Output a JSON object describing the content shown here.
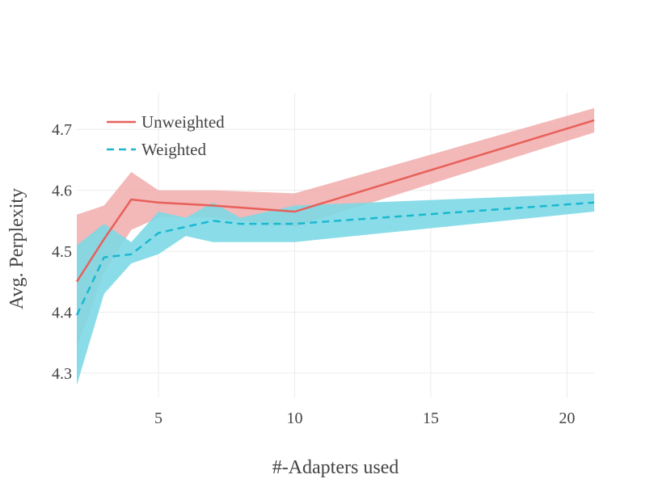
{
  "chart_data": {
    "type": "line",
    "title": "",
    "xlabel": "#-Adapters used",
    "ylabel": "Avg. Perplexity",
    "xlim": [
      2,
      21
    ],
    "ylim": [
      4.26,
      4.76
    ],
    "xticks": [
      5,
      10,
      15,
      20
    ],
    "yticks": [
      4.3,
      4.4,
      4.5,
      4.6,
      4.7
    ],
    "grid": true,
    "legend_position": "top-left",
    "series": [
      {
        "name": "Unweighted",
        "color": "#e8605a",
        "band_color": "#f0a6a6",
        "line_style": "solid",
        "x": [
          2,
          3,
          4,
          5,
          7,
          10,
          21
        ],
        "values": [
          4.45,
          4.52,
          4.585,
          4.58,
          4.575,
          4.565,
          4.715
        ],
        "upper": [
          4.56,
          4.575,
          4.63,
          4.6,
          4.6,
          4.595,
          4.735
        ],
        "lower": [
          4.34,
          4.465,
          4.535,
          4.555,
          4.555,
          4.54,
          4.695
        ]
      },
      {
        "name": "Weighted",
        "color": "#1ab8d0",
        "band_color": "#7dd9e6",
        "line_style": "dashed",
        "x": [
          2,
          3,
          4,
          5,
          6,
          7,
          8,
          10,
          21
        ],
        "values": [
          4.395,
          4.49,
          4.495,
          4.53,
          4.54,
          4.55,
          4.545,
          4.545,
          4.58
        ],
        "upper": [
          4.51,
          4.545,
          4.515,
          4.565,
          4.555,
          4.58,
          4.555,
          4.575,
          4.595
        ],
        "lower": [
          4.28,
          4.43,
          4.48,
          4.495,
          4.525,
          4.515,
          4.515,
          4.515,
          4.565
        ]
      }
    ]
  }
}
